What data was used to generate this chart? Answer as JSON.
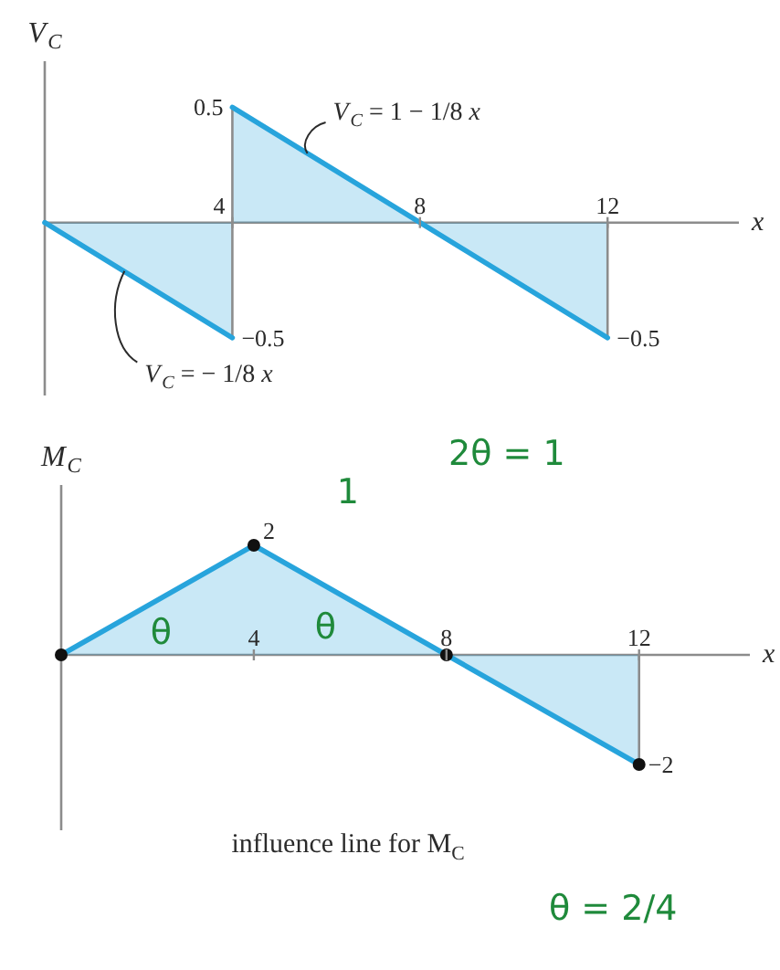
{
  "chart_data": [
    {
      "type": "area",
      "ylabel": "V$_{C}$",
      "xlabel": "x",
      "x": [
        0,
        4,
        4,
        8,
        12
      ],
      "values": [
        0,
        -0.5,
        0.5,
        0,
        -0.5
      ],
      "color": "#27a4dc",
      "value_labels": [
        null,
        "−0.5",
        "0.5",
        null,
        "−0.5"
      ],
      "xlim": [
        0,
        14.8
      ],
      "ylim": [
        -0.75,
        0.7
      ],
      "xticks": [
        4,
        8,
        12
      ],
      "tick_labels": "x",
      "annotations": [
        {
          "text": "V$_{C}$ = 1 − 1/8 x",
          "x": 5.6,
          "y": 0.3
        },
        {
          "text": "V$_{C}$ = − 1/8 x",
          "x": 1.7,
          "y": -0.21
        }
      ]
    },
    {
      "type": "area",
      "ylabel": "M$_{C}$",
      "xlabel": "x",
      "x": [
        0,
        4,
        8,
        12
      ],
      "values": [
        0,
        2,
        0,
        -2
      ],
      "color": "#27a4dc",
      "value_labels": [
        null,
        "2",
        null,
        "−2"
      ],
      "marker": "circle",
      "xlim": [
        0,
        14.3
      ],
      "ylim": [
        -3.2,
        3.1
      ],
      "xticks": [
        4,
        8,
        12
      ],
      "tick_labels": "x",
      "annotations": [
        "1",
        "2θ = 1",
        "θ",
        "θ",
        "influence line for M$_{C}$",
        "θ = 2/4"
      ]
    }
  ]
}
